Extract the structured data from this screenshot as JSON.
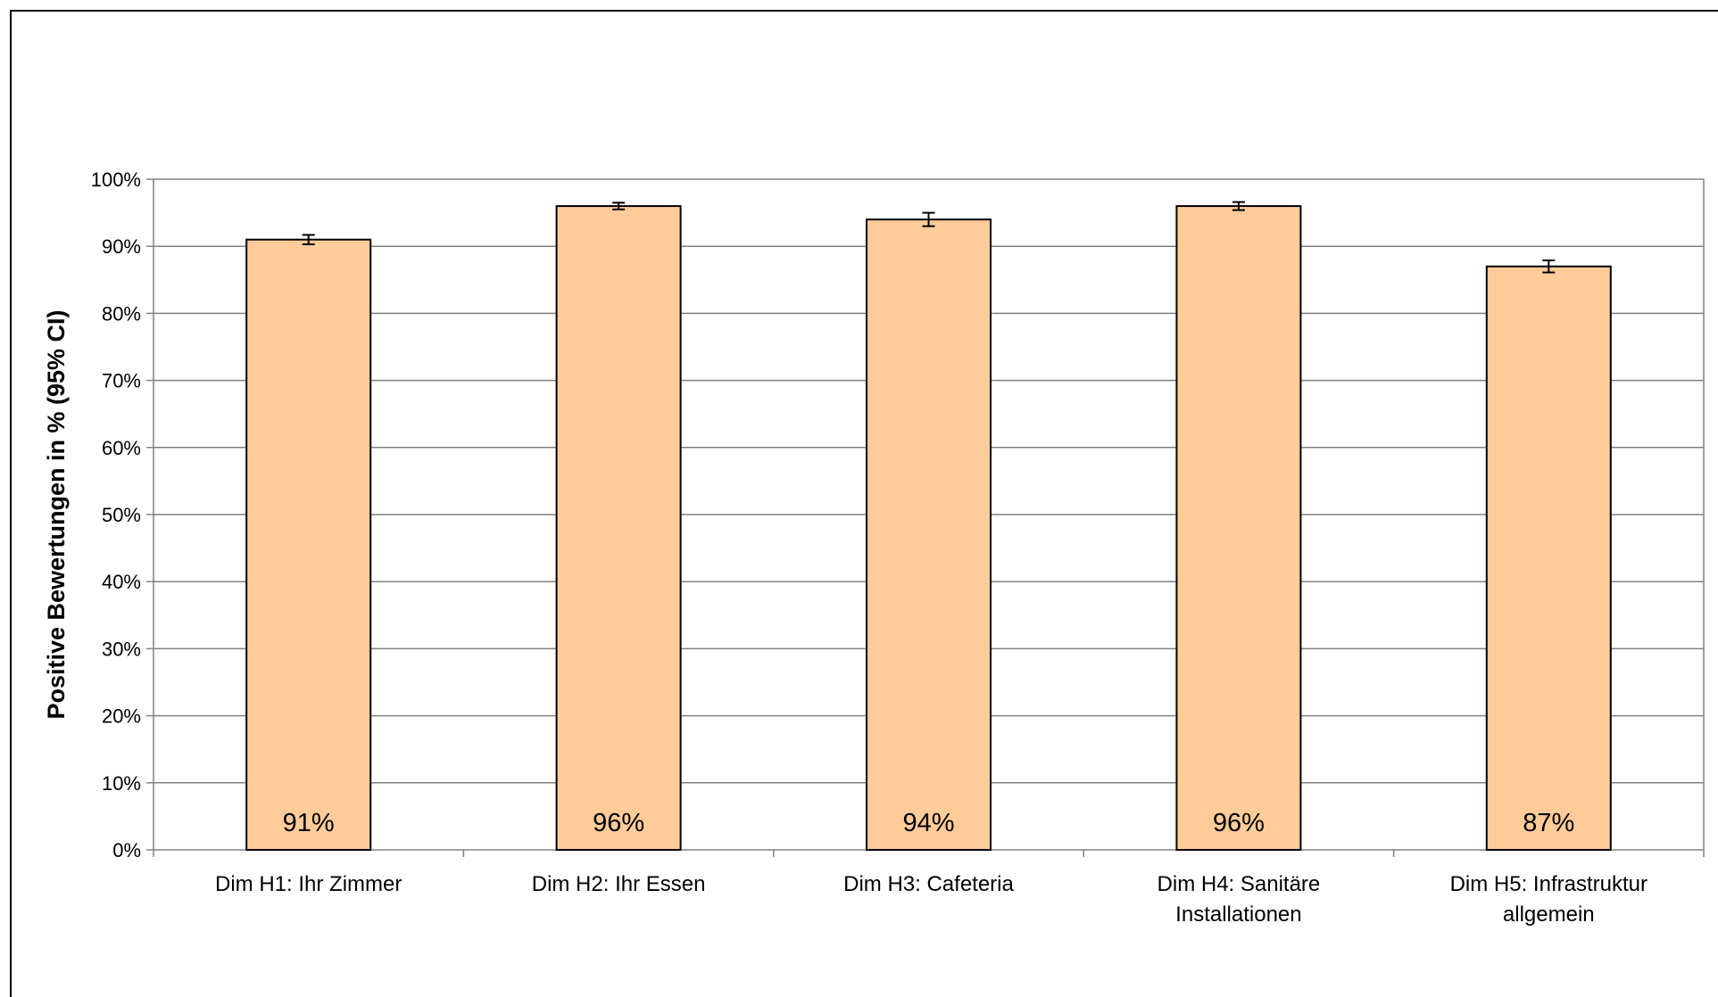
{
  "chart_data": {
    "type": "bar",
    "title": "",
    "xlabel": "",
    "ylabel": "Positive Bewertungen in % (95% CI)",
    "ylim": [
      0,
      100
    ],
    "yticks": [
      0,
      10,
      20,
      30,
      40,
      50,
      60,
      70,
      80,
      90,
      100
    ],
    "ytick_labels": [
      "0%",
      "10%",
      "20%",
      "30%",
      "40%",
      "50%",
      "60%",
      "70%",
      "80%",
      "90%",
      "100%"
    ],
    "grid": true,
    "categories": [
      [
        "Dim H1: Ihr Zimmer"
      ],
      [
        "Dim H2: Ihr Essen"
      ],
      [
        "Dim H3: Cafeteria"
      ],
      [
        "Dim H4: Sanitäre",
        "Installationen"
      ],
      [
        "Dim H5: Infrastruktur",
        "allgemein"
      ]
    ],
    "values": [
      91,
      96,
      94,
      96,
      87
    ],
    "data_labels": [
      "91%",
      "96%",
      "94%",
      "96%",
      "87%"
    ],
    "ci_low": [
      90.3,
      95.5,
      93.0,
      95.4,
      86.1
    ],
    "ci_high": [
      91.7,
      96.5,
      95.0,
      96.6,
      87.9
    ],
    "colors": {
      "bar_fill": "#FFCC99",
      "bar_stroke": "#000000",
      "grid": "#808080",
      "axis": "#808080"
    }
  }
}
